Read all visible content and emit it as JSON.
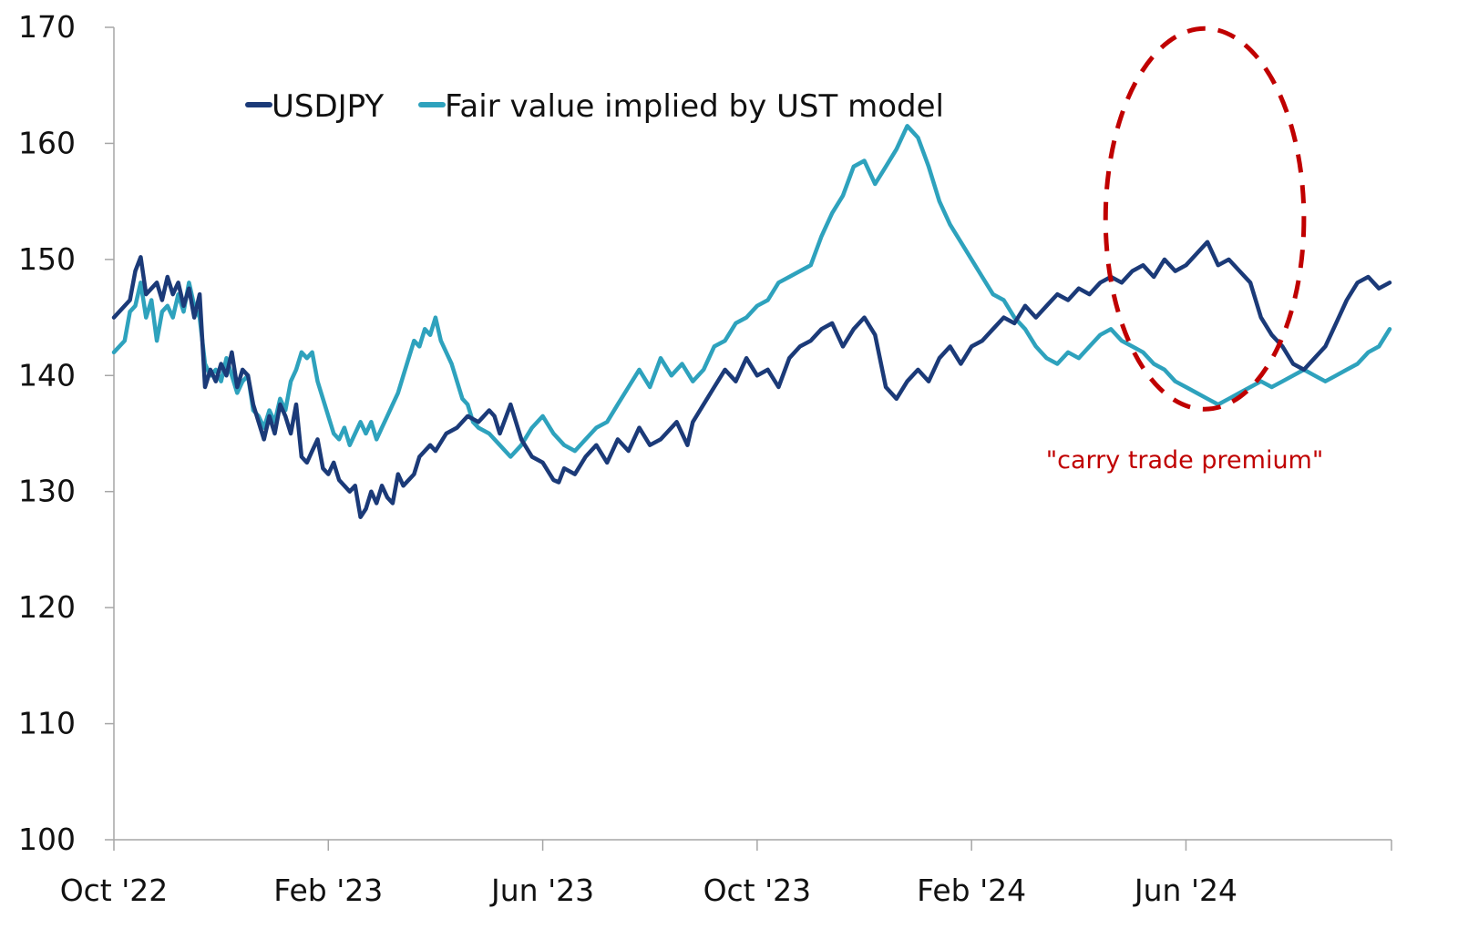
{
  "chart_data": {
    "type": "line",
    "title": "",
    "xlabel": "",
    "ylabel": "",
    "ylim": [
      100,
      170
    ],
    "yticks": [
      100,
      110,
      120,
      130,
      140,
      150,
      160,
      170
    ],
    "xlim_month_index": [
      0,
      23.8
    ],
    "xticks": [
      {
        "label": "Oct '22",
        "m": 0
      },
      {
        "label": "Feb '23",
        "m": 4
      },
      {
        "label": "Jun '23",
        "m": 8
      },
      {
        "label": "Oct '23",
        "m": 12
      },
      {
        "label": "Feb '24",
        "m": 16
      },
      {
        "label": "Jun '24",
        "m": 20
      }
    ],
    "legend": {
      "position": "top-left"
    },
    "series": [
      {
        "name": "USDJPY",
        "color": "#1b3a78",
        "points": [
          [
            0.0,
            145.0
          ],
          [
            0.3,
            146.5
          ],
          [
            0.4,
            149.0
          ],
          [
            0.5,
            150.2
          ],
          [
            0.6,
            147.0
          ],
          [
            0.8,
            148.0
          ],
          [
            0.9,
            146.5
          ],
          [
            1.0,
            148.5
          ],
          [
            1.1,
            147.0
          ],
          [
            1.2,
            148.0
          ],
          [
            1.3,
            146.0
          ],
          [
            1.4,
            147.5
          ],
          [
            1.5,
            145.0
          ],
          [
            1.6,
            147.0
          ],
          [
            1.1,
            147.0
          ],
          [
            1.7,
            139.0
          ],
          [
            1.8,
            140.5
          ],
          [
            1.9,
            139.5
          ],
          [
            2.0,
            141.0
          ],
          [
            2.1,
            140.0
          ],
          [
            2.2,
            142.0
          ],
          [
            2.3,
            139.0
          ],
          [
            2.4,
            140.5
          ],
          [
            2.5,
            140.0
          ],
          [
            2.6,
            137.5
          ],
          [
            2.7,
            136.0
          ],
          [
            2.8,
            134.5
          ],
          [
            2.9,
            136.5
          ],
          [
            3.0,
            135.0
          ],
          [
            3.1,
            137.5
          ],
          [
            3.2,
            136.5
          ],
          [
            3.3,
            135.0
          ],
          [
            3.4,
            137.5
          ],
          [
            3.5,
            133.0
          ],
          [
            3.6,
            132.5
          ],
          [
            3.7,
            133.5
          ],
          [
            3.8,
            134.5
          ],
          [
            3.9,
            132.0
          ],
          [
            4.0,
            131.5
          ],
          [
            4.1,
            132.5
          ],
          [
            4.2,
            131.0
          ],
          [
            4.3,
            130.5
          ],
          [
            4.4,
            130.0
          ],
          [
            4.5,
            130.5
          ],
          [
            4.6,
            127.8
          ],
          [
            4.7,
            128.5
          ],
          [
            4.8,
            130.0
          ],
          [
            4.9,
            129.0
          ],
          [
            5.0,
            130.5
          ],
          [
            5.1,
            129.5
          ],
          [
            5.2,
            129.0
          ],
          [
            5.3,
            131.5
          ],
          [
            5.4,
            130.5
          ],
          [
            5.6,
            131.5
          ],
          [
            5.7,
            133.0
          ],
          [
            5.9,
            134.0
          ],
          [
            6.0,
            133.5
          ],
          [
            6.2,
            135.0
          ],
          [
            6.4,
            135.5
          ],
          [
            6.6,
            136.5
          ],
          [
            6.8,
            136.0
          ],
          [
            7.0,
            137.0
          ],
          [
            7.1,
            136.5
          ],
          [
            7.2,
            135.0
          ],
          [
            7.4,
            137.5
          ],
          [
            7.6,
            134.5
          ],
          [
            7.8,
            133.0
          ],
          [
            8.0,
            132.5
          ],
          [
            8.2,
            131.0
          ],
          [
            8.3,
            130.8
          ],
          [
            8.4,
            132.0
          ],
          [
            8.6,
            131.5
          ],
          [
            8.8,
            133.0
          ],
          [
            9.0,
            134.0
          ],
          [
            9.2,
            132.5
          ],
          [
            9.4,
            134.5
          ],
          [
            9.6,
            133.5
          ],
          [
            9.8,
            135.5
          ],
          [
            10.0,
            134.0
          ],
          [
            10.2,
            134.5
          ],
          [
            10.4,
            135.5
          ],
          [
            10.5,
            136.0
          ],
          [
            10.6,
            135.0
          ],
          [
            10.7,
            134.0
          ],
          [
            10.8,
            136.0
          ],
          [
            11.0,
            137.5
          ],
          [
            11.2,
            139.0
          ],
          [
            11.4,
            140.5
          ],
          [
            11.6,
            139.5
          ],
          [
            11.8,
            141.5
          ],
          [
            12.0,
            140.0
          ],
          [
            12.2,
            140.5
          ],
          [
            12.4,
            139.0
          ],
          [
            12.6,
            141.5
          ],
          [
            12.8,
            142.5
          ],
          [
            13.0,
            143.0
          ],
          [
            13.2,
            144.0
          ],
          [
            13.4,
            144.5
          ],
          [
            13.6,
            142.5
          ],
          [
            13.8,
            144.0
          ],
          [
            14.0,
            145.0
          ],
          [
            14.2,
            143.5
          ],
          [
            14.4,
            139.0
          ],
          [
            14.6,
            138.0
          ],
          [
            14.8,
            139.5
          ],
          [
            15.0,
            140.5
          ],
          [
            15.2,
            139.5
          ],
          [
            15.4,
            141.5
          ],
          [
            15.6,
            142.5
          ],
          [
            15.8,
            141.0
          ],
          [
            16.0,
            142.5
          ],
          [
            16.2,
            143.0
          ],
          [
            16.4,
            144.0
          ],
          [
            16.6,
            145.0
          ],
          [
            16.8,
            144.5
          ],
          [
            17.0,
            146.0
          ],
          [
            17.2,
            145.0
          ],
          [
            17.4,
            146.0
          ],
          [
            17.6,
            147.0
          ],
          [
            17.8,
            146.5
          ],
          [
            18.0,
            147.5
          ],
          [
            18.2,
            147.0
          ],
          [
            18.4,
            148.0
          ],
          [
            18.6,
            148.5
          ],
          [
            18.8,
            148.0
          ],
          [
            19.0,
            149.0
          ],
          [
            19.2,
            149.5
          ],
          [
            19.4,
            148.5
          ],
          [
            19.6,
            150.0
          ],
          [
            19.8,
            149.0
          ],
          [
            20.0,
            149.5
          ],
          [
            20.2,
            150.5
          ],
          [
            20.4,
            151.5
          ],
          [
            20.6,
            149.5
          ],
          [
            20.8,
            150.0
          ],
          [
            21.0,
            149.0
          ],
          [
            21.2,
            148.0
          ],
          [
            21.4,
            145.0
          ],
          [
            21.6,
            143.5
          ],
          [
            21.8,
            142.5
          ],
          [
            22.0,
            141.0
          ],
          [
            22.2,
            140.5
          ],
          [
            22.4,
            141.5
          ],
          [
            22.6,
            142.5
          ],
          [
            22.8,
            144.5
          ],
          [
            23.0,
            146.5
          ],
          [
            23.2,
            148.0
          ],
          [
            23.4,
            148.5
          ],
          [
            23.6,
            147.5
          ],
          [
            23.8,
            148.0
          ]
        ]
      },
      {
        "name": "Fair value implied by UST model",
        "color": "#2ea2bd",
        "points": [
          [
            0.0,
            142.0
          ],
          [
            0.2,
            143.0
          ],
          [
            0.3,
            145.5
          ],
          [
            0.4,
            146.0
          ],
          [
            0.5,
            148.0
          ],
          [
            0.6,
            145.0
          ],
          [
            0.7,
            146.5
          ],
          [
            0.8,
            143.0
          ],
          [
            0.9,
            145.5
          ],
          [
            1.0,
            146.0
          ],
          [
            1.1,
            145.0
          ],
          [
            1.2,
            147.0
          ],
          [
            1.3,
            145.5
          ],
          [
            1.4,
            148.0
          ],
          [
            1.5,
            146.0
          ],
          [
            1.6,
            145.0
          ],
          [
            1.7,
            141.0
          ],
          [
            1.8,
            140.0
          ],
          [
            1.9,
            140.5
          ],
          [
            2.0,
            139.5
          ],
          [
            2.1,
            141.5
          ],
          [
            2.2,
            140.0
          ],
          [
            2.3,
            138.5
          ],
          [
            2.4,
            139.5
          ],
          [
            2.5,
            140.0
          ],
          [
            2.6,
            137.0
          ],
          [
            2.7,
            136.5
          ],
          [
            2.8,
            135.5
          ],
          [
            2.9,
            137.0
          ],
          [
            3.0,
            136.0
          ],
          [
            3.1,
            138.0
          ],
          [
            3.2,
            137.0
          ],
          [
            3.3,
            139.5
          ],
          [
            3.4,
            140.5
          ],
          [
            3.5,
            142.0
          ],
          [
            3.6,
            141.5
          ],
          [
            3.7,
            142.0
          ],
          [
            3.8,
            139.5
          ],
          [
            3.9,
            138.0
          ],
          [
            4.0,
            136.5
          ],
          [
            4.1,
            135.0
          ],
          [
            4.2,
            134.5
          ],
          [
            4.3,
            135.5
          ],
          [
            4.4,
            134.0
          ],
          [
            4.5,
            135.0
          ],
          [
            4.6,
            136.0
          ],
          [
            4.7,
            135.0
          ],
          [
            4.8,
            136.0
          ],
          [
            4.9,
            134.5
          ],
          [
            5.0,
            135.5
          ],
          [
            5.1,
            136.5
          ],
          [
            5.2,
            137.5
          ],
          [
            5.3,
            138.5
          ],
          [
            5.4,
            140.0
          ],
          [
            5.5,
            141.5
          ],
          [
            5.6,
            143.0
          ],
          [
            5.7,
            142.5
          ],
          [
            5.8,
            144.0
          ],
          [
            5.9,
            143.5
          ],
          [
            6.0,
            145.0
          ],
          [
            6.1,
            143.0
          ],
          [
            6.2,
            142.0
          ],
          [
            6.3,
            141.0
          ],
          [
            6.4,
            139.5
          ],
          [
            6.5,
            138.0
          ],
          [
            6.6,
            137.5
          ],
          [
            6.7,
            136.0
          ],
          [
            6.8,
            135.5
          ],
          [
            7.0,
            135.0
          ],
          [
            7.2,
            134.0
          ],
          [
            7.4,
            133.0
          ],
          [
            7.6,
            134.0
          ],
          [
            7.8,
            135.5
          ],
          [
            8.0,
            136.5
          ],
          [
            8.2,
            135.0
          ],
          [
            8.4,
            134.0
          ],
          [
            8.6,
            133.5
          ],
          [
            8.8,
            134.5
          ],
          [
            9.0,
            135.5
          ],
          [
            9.2,
            136.0
          ],
          [
            9.4,
            137.5
          ],
          [
            9.6,
            139.0
          ],
          [
            9.8,
            140.5
          ],
          [
            10.0,
            139.0
          ],
          [
            10.2,
            141.5
          ],
          [
            10.4,
            140.0
          ],
          [
            10.6,
            141.0
          ],
          [
            10.8,
            139.5
          ],
          [
            11.0,
            140.5
          ],
          [
            11.2,
            142.5
          ],
          [
            11.4,
            143.0
          ],
          [
            11.6,
            144.5
          ],
          [
            11.8,
            145.0
          ],
          [
            12.0,
            146.0
          ],
          [
            12.2,
            146.5
          ],
          [
            12.4,
            148.0
          ],
          [
            12.6,
            148.5
          ],
          [
            12.8,
            149.0
          ],
          [
            13.0,
            149.5
          ],
          [
            13.2,
            152.0
          ],
          [
            13.4,
            154.0
          ],
          [
            13.6,
            155.5
          ],
          [
            13.8,
            158.0
          ],
          [
            14.0,
            158.5
          ],
          [
            14.2,
            156.5
          ],
          [
            14.4,
            158.0
          ],
          [
            14.6,
            159.5
          ],
          [
            14.8,
            161.5
          ],
          [
            15.0,
            160.5
          ],
          [
            15.2,
            158.0
          ],
          [
            15.4,
            155.0
          ],
          [
            15.6,
            153.0
          ],
          [
            15.8,
            151.5
          ],
          [
            16.0,
            150.0
          ],
          [
            16.2,
            148.5
          ],
          [
            16.4,
            147.0
          ],
          [
            16.6,
            146.5
          ],
          [
            16.8,
            145.0
          ],
          [
            17.0,
            144.0
          ],
          [
            17.2,
            142.5
          ],
          [
            17.4,
            141.5
          ],
          [
            17.6,
            141.0
          ],
          [
            17.8,
            142.0
          ],
          [
            18.0,
            141.5
          ],
          [
            18.2,
            142.5
          ],
          [
            18.4,
            143.5
          ],
          [
            18.6,
            144.0
          ],
          [
            18.8,
            143.0
          ],
          [
            19.0,
            142.5
          ],
          [
            19.2,
            142.0
          ],
          [
            19.4,
            141.0
          ],
          [
            19.6,
            140.5
          ],
          [
            19.8,
            139.5
          ],
          [
            20.0,
            139.0
          ],
          [
            20.2,
            138.5
          ],
          [
            20.4,
            138.0
          ],
          [
            20.6,
            137.5
          ],
          [
            20.8,
            138.0
          ],
          [
            21.0,
            138.5
          ],
          [
            21.2,
            139.0
          ],
          [
            21.4,
            139.5
          ],
          [
            21.6,
            139.0
          ],
          [
            21.8,
            139.5
          ],
          [
            22.0,
            140.0
          ],
          [
            22.2,
            140.5
          ],
          [
            22.4,
            140.0
          ],
          [
            22.6,
            139.5
          ],
          [
            22.8,
            140.0
          ],
          [
            23.0,
            140.5
          ],
          [
            23.2,
            141.0
          ],
          [
            23.4,
            142.0
          ],
          [
            23.6,
            142.5
          ],
          [
            23.8,
            144.0
          ]
        ]
      }
    ],
    "annotation": {
      "text": "\"carry trade premium\"",
      "color": "#c00000",
      "shape": "dashed ellipse",
      "center": {
        "m": 20.35,
        "y": 153.5
      },
      "radius": {
        "m": 1.85,
        "y": 16.4
      }
    }
  }
}
